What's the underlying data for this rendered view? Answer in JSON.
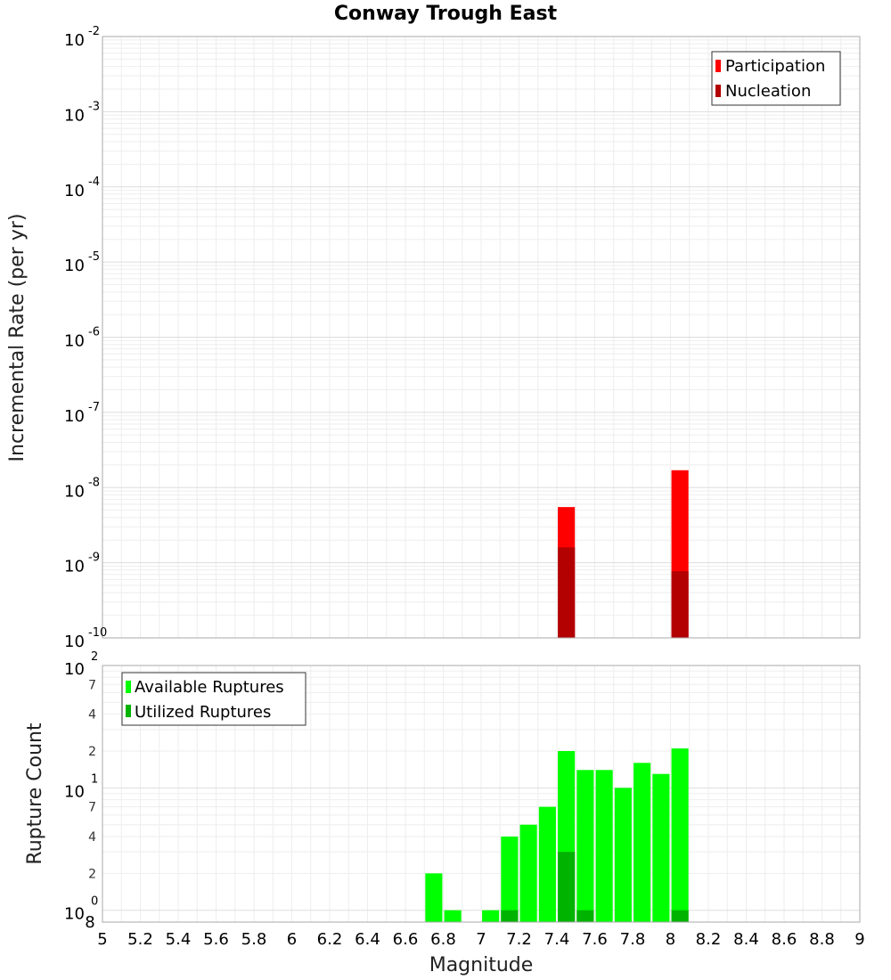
{
  "chart_data": [
    {
      "type": "bar",
      "title": "Conway Trough East",
      "xlabel": "",
      "ylabel": "Incremental Rate (per yr)",
      "yscale": "log",
      "ylim": [
        1e-10,
        0.01
      ],
      "xlim": [
        5,
        9
      ],
      "y_ticks": [
        {
          "base": "10",
          "exp": "-2"
        },
        {
          "base": "10",
          "exp": "-3"
        },
        {
          "base": "10",
          "exp": "-4"
        },
        {
          "base": "10",
          "exp": "-5"
        },
        {
          "base": "10",
          "exp": "-6"
        },
        {
          "base": "10",
          "exp": "-7"
        },
        {
          "base": "10",
          "exp": "-8"
        },
        {
          "base": "10",
          "exp": "-9"
        },
        {
          "base": "10",
          "exp": "-10"
        }
      ],
      "legend_position": "top-right",
      "series": [
        {
          "name": "Participation",
          "color": "#ff0000",
          "x": [
            7.45,
            8.05
          ],
          "values": [
            5.5e-09,
            1.7e-08
          ]
        },
        {
          "name": "Nucleation",
          "color": "#b30000",
          "x": [
            7.45,
            8.05
          ],
          "values": [
            1.6e-09,
            7.7e-10
          ]
        }
      ]
    },
    {
      "type": "bar",
      "title": "",
      "xlabel": "Magnitude",
      "ylabel": "Rupture Count",
      "yscale": "log",
      "ylim": [
        0.8,
        100
      ],
      "xlim": [
        5,
        9
      ],
      "x_ticks": [
        "5",
        "5.2",
        "5.4",
        "5.6",
        "5.8",
        "6",
        "6.2",
        "6.4",
        "6.6",
        "6.8",
        "7",
        "7.2",
        "7.4",
        "7.6",
        "7.8",
        "8",
        "8.2",
        "8.4",
        "8.6",
        "8.8",
        "9"
      ],
      "y_major_ticks": [
        {
          "base": "10",
          "exp": "0"
        },
        {
          "base": "10",
          "exp": "1"
        },
        {
          "base": "10",
          "exp": "2"
        }
      ],
      "y_minor_ticks": [
        "2",
        "4",
        "7",
        "2",
        "4",
        "7"
      ],
      "y_bottom_label": "8",
      "legend_position": "top-left",
      "series": [
        {
          "name": "Available Ruptures",
          "color": "#00ff00",
          "x": [
            6.75,
            6.85,
            7.05,
            7.15,
            7.25,
            7.35,
            7.45,
            7.55,
            7.65,
            7.75,
            7.85,
            7.95,
            8.05
          ],
          "values": [
            2,
            1,
            1,
            4,
            5,
            7,
            20,
            14,
            14,
            10,
            16,
            13,
            21
          ]
        },
        {
          "name": "Utilized Ruptures",
          "color": "#00b300",
          "x": [
            7.15,
            7.45,
            7.55,
            8.05
          ],
          "values": [
            1,
            3,
            1,
            1
          ]
        }
      ]
    }
  ]
}
